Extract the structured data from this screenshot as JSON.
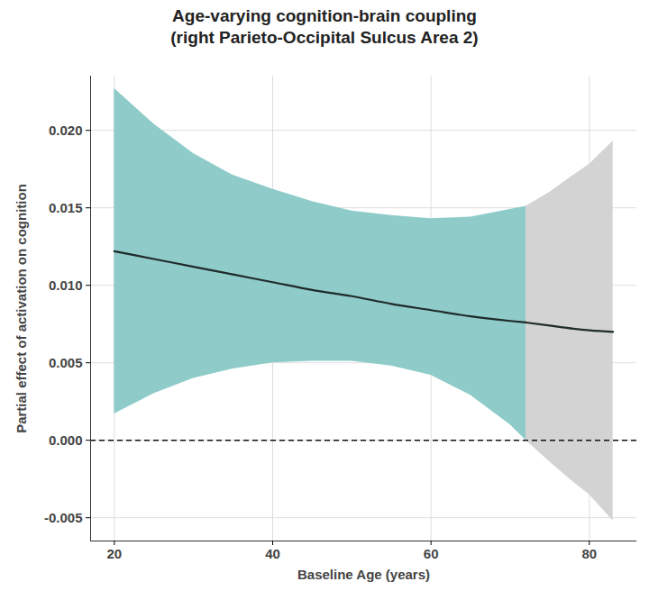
{
  "chart_data": {
    "type": "line",
    "title": "Age-varying cognition-brain coupling\n(right Parieto-Occipital Sulcus Area 2)",
    "x_label": "Baseline Age (years)",
    "y_label": "Partial effect of activation on cognition",
    "color": "#1f2a2a",
    "series": [
      {
        "color": "#8ecbc9",
        "x": [
          20,
          25,
          30,
          35,
          40,
          45,
          50,
          55,
          60,
          65,
          70,
          72
        ],
        "values": [
          0.0122,
          0.0117,
          0.0112,
          0.0107,
          0.0102,
          0.0097,
          0.0093,
          0.0088,
          0.0084,
          0.008,
          0.0077,
          0.0076
        ],
        "lower": [
          0.0017,
          0.003,
          0.004,
          0.0046,
          0.005,
          0.0051,
          0.0051,
          0.0048,
          0.0042,
          0.0029,
          0.001,
          0.0
        ],
        "upper": [
          0.0227,
          0.0204,
          0.0185,
          0.0171,
          0.0162,
          0.0154,
          0.0148,
          0.0145,
          0.0143,
          0.0144,
          0.0149,
          0.0151
        ]
      },
      {
        "color": "#d3d3d3",
        "x": [
          72,
          75,
          78,
          80,
          83
        ],
        "values": [
          0.0076,
          0.0074,
          0.0072,
          0.0071,
          0.007
        ],
        "lower": [
          0.0,
          -0.0014,
          -0.0027,
          -0.0035,
          -0.0052
        ],
        "upper": [
          0.0151,
          0.016,
          0.0171,
          0.0178,
          0.0193
        ]
      }
    ],
    "reference": {
      "y": 0,
      "line_style": "dashed"
    },
    "xlim": [
      17,
      86
    ],
    "xticks": [
      20,
      40,
      60,
      80
    ],
    "ylim": [
      -0.0065,
      0.0235
    ],
    "yticks": [
      -0.005,
      {
        "value": 0,
        "label": "0.000"
      },
      0.005,
      {
        "value": 0.01,
        "label": "0.010"
      },
      0.015,
      {
        "value": 0.02,
        "label": "0.020"
      }
    ],
    "grid": true
  }
}
